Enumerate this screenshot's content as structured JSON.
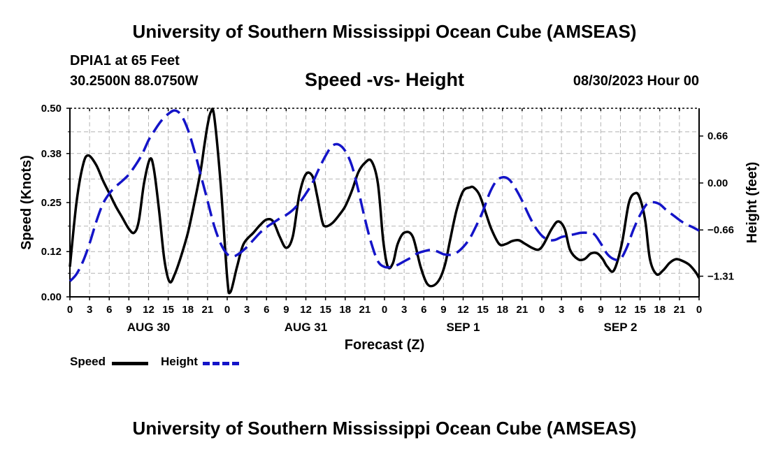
{
  "header": {
    "title": "University of Southern Mississippi Ocean Cube (AMSEAS)",
    "station": "DPIA1 at 65 Feet",
    "coords": "30.2500N  88.0750W",
    "subtitle": "Speed -vs- Height",
    "datetime": "08/30/2023 Hour 00"
  },
  "footer": {
    "title": "University of Southern Mississippi Ocean Cube (AMSEAS)"
  },
  "colors": {
    "speed": "#000000",
    "height": "#1414c8",
    "grid": "#b4b4b4"
  },
  "chart_data": {
    "type": "line",
    "xlabel": "Forecast (Z)",
    "ylabel_left": "Speed (Knots)",
    "ylabel_right": "Height (feet)",
    "xlim": [
      0,
      96
    ],
    "ylim_left": [
      0,
      0.5
    ],
    "ylim_right": [
      -1.6,
      1.05
    ],
    "yticks_left": [
      "0.00",
      "0.12",
      "0.25",
      "0.38",
      "0.50"
    ],
    "yticks_right": [
      {
        "value": 0.66,
        "label": "0.66"
      },
      {
        "value": 0.0,
        "label": "0.00"
      },
      {
        "value": -0.66,
        "label": "−0.66"
      },
      {
        "value": -1.31,
        "label": "−1.31"
      }
    ],
    "xtick_labels": [
      "0",
      "3",
      "6",
      "9",
      "12",
      "15",
      "18",
      "21",
      "0",
      "3",
      "6",
      "9",
      "12",
      "15",
      "18",
      "21",
      "0",
      "3",
      "6",
      "9",
      "12",
      "15",
      "18",
      "21",
      "0",
      "3",
      "6",
      "9",
      "12",
      "15",
      "18",
      "21",
      "0"
    ],
    "day_labels": [
      {
        "hour": 12,
        "label": "AUG 30"
      },
      {
        "hour": 36,
        "label": "AUG 31"
      },
      {
        "hour": 60,
        "label": "SEP 1"
      },
      {
        "hour": 84,
        "label": "SEP 2"
      }
    ],
    "grid": true,
    "legend": "bottom-left",
    "series": [
      {
        "name": "Speed",
        "axis": "left",
        "style": "solid",
        "x": [
          0,
          1,
          2,
          2.8,
          4,
          5,
          6,
          7,
          8,
          9,
          9.8,
          10.5,
          11.3,
          12.2,
          12.8,
          13.6,
          14.4,
          15.2,
          16,
          17,
          18,
          19,
          20,
          20.5,
          21,
          21.5,
          22,
          23,
          24,
          24.5,
          25.5,
          26.5,
          28,
          29,
          30,
          31,
          32,
          33,
          34,
          35,
          36,
          37,
          37.7,
          38.5,
          39,
          40,
          41,
          42,
          43,
          44,
          45,
          46,
          47,
          47.8,
          48.5,
          49.3,
          50,
          51,
          52.3,
          53.5,
          54.5,
          55.5,
          56.5,
          57.3,
          58,
          59,
          60,
          61,
          61.6,
          62.5,
          63.5,
          64.3,
          65.5,
          66.5,
          67.5,
          68.5,
          69.5,
          70.5,
          71.5,
          72.3,
          73.5,
          74.5,
          75.5,
          76.3,
          77.5,
          78.5,
          79.5,
          80.5,
          81.3,
          82,
          83,
          84.2,
          85.3,
          86.3,
          87,
          87.8,
          88.5,
          89.5,
          90.5,
          91.5,
          92.5,
          93.5,
          94.5,
          95.5,
          96
        ],
        "values": [
          0.08,
          0.25,
          0.35,
          0.375,
          0.35,
          0.31,
          0.275,
          0.24,
          0.21,
          0.18,
          0.17,
          0.2,
          0.3,
          0.365,
          0.34,
          0.23,
          0.1,
          0.04,
          0.06,
          0.11,
          0.17,
          0.25,
          0.34,
          0.4,
          0.455,
          0.49,
          0.48,
          0.3,
          0.05,
          0.013,
          0.08,
          0.14,
          0.17,
          0.19,
          0.205,
          0.2,
          0.16,
          0.13,
          0.16,
          0.27,
          0.325,
          0.32,
          0.27,
          0.2,
          0.187,
          0.195,
          0.215,
          0.24,
          0.28,
          0.33,
          0.355,
          0.36,
          0.3,
          0.15,
          0.08,
          0.09,
          0.14,
          0.17,
          0.16,
          0.08,
          0.035,
          0.03,
          0.05,
          0.09,
          0.15,
          0.23,
          0.28,
          0.29,
          0.29,
          0.27,
          0.22,
          0.18,
          0.14,
          0.14,
          0.148,
          0.15,
          0.14,
          0.13,
          0.125,
          0.14,
          0.18,
          0.2,
          0.18,
          0.125,
          0.1,
          0.1,
          0.115,
          0.115,
          0.1,
          0.08,
          0.07,
          0.14,
          0.25,
          0.275,
          0.26,
          0.2,
          0.1,
          0.06,
          0.07,
          0.09,
          0.1,
          0.095,
          0.085,
          0.065,
          0.05
        ]
      },
      {
        "name": "Height",
        "axis": "right",
        "style": "dashed",
        "x": [
          0,
          1,
          2,
          3,
          4,
          5,
          6,
          7,
          8,
          9,
          10,
          11,
          12,
          13,
          14,
          15,
          16,
          17,
          18,
          19,
          20,
          21,
          22,
          23,
          24,
          25,
          26,
          27,
          28,
          29,
          30,
          31,
          32,
          33,
          34,
          35,
          36,
          37,
          38,
          39,
          40,
          41,
          42,
          43,
          44,
          45,
          46,
          47,
          48,
          49,
          50,
          51,
          52,
          53,
          54,
          55,
          56,
          57,
          58,
          59,
          60,
          61,
          62,
          63,
          64,
          65,
          66,
          67,
          68,
          69,
          70,
          71,
          72,
          73,
          74,
          75,
          76,
          77,
          78,
          79,
          80,
          81,
          82,
          83,
          84,
          85,
          86,
          87,
          88,
          89,
          90,
          91,
          92,
          93,
          94,
          95,
          96
        ],
        "values": [
          -1.38,
          -1.28,
          -1.1,
          -0.85,
          -0.55,
          -0.3,
          -0.15,
          -0.05,
          0.03,
          0.12,
          0.25,
          0.4,
          0.6,
          0.75,
          0.88,
          0.97,
          1.02,
          0.95,
          0.75,
          0.45,
          0.1,
          -0.25,
          -0.6,
          -0.85,
          -1.0,
          -1.03,
          -0.98,
          -0.9,
          -0.8,
          -0.7,
          -0.62,
          -0.56,
          -0.5,
          -0.45,
          -0.38,
          -0.28,
          -0.15,
          0.0,
          0.2,
          0.38,
          0.52,
          0.54,
          0.45,
          0.25,
          -0.1,
          -0.5,
          -0.85,
          -1.1,
          -1.18,
          -1.18,
          -1.15,
          -1.1,
          -1.05,
          -0.99,
          -0.96,
          -0.94,
          -0.96,
          -1.0,
          -1.01,
          -0.98,
          -0.9,
          -0.78,
          -0.6,
          -0.4,
          -0.15,
          0.02,
          0.08,
          0.05,
          -0.08,
          -0.25,
          -0.45,
          -0.62,
          -0.74,
          -0.8,
          -0.8,
          -0.76,
          -0.74,
          -0.72,
          -0.7,
          -0.7,
          -0.72,
          -0.85,
          -1.0,
          -1.07,
          -1.07,
          -0.9,
          -0.65,
          -0.45,
          -0.3,
          -0.27,
          -0.3,
          -0.38,
          -0.45,
          -0.52,
          -0.58,
          -0.62,
          -0.67
        ]
      }
    ]
  },
  "legend": {
    "speed_label": "Speed",
    "height_label": "Height"
  }
}
